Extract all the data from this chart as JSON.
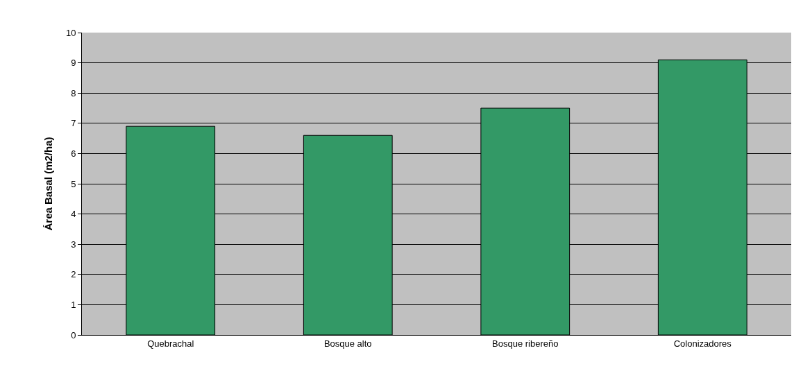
{
  "chart_data": {
    "type": "bar",
    "ylabel": "Área Basal (m2/ha)",
    "categories": [
      "Quebrachal",
      "Bosque alto",
      "Bosque ribereño",
      "Colonizadores"
    ],
    "values": [
      6.9,
      6.6,
      7.5,
      9.1
    ],
    "color": "#339966",
    "ylim": [
      0,
      10
    ],
    "yticks": [
      0,
      1,
      2,
      3,
      4,
      5,
      6,
      7,
      8,
      9,
      10
    ],
    "grid": "y"
  }
}
